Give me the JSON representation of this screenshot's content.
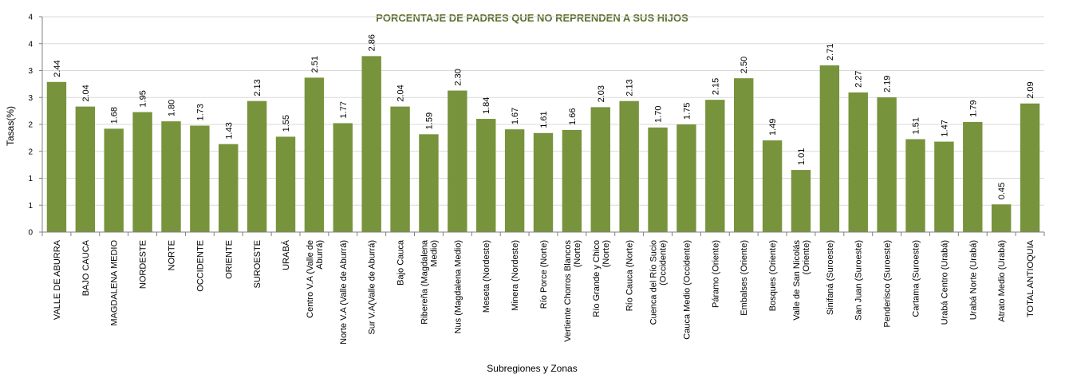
{
  "chart_data": {
    "type": "bar",
    "title": "PORCENTAJE DE PADRES QUE NO REPRENDEN A  SUS HIJOS",
    "xlabel": "Subregiones y Zonas",
    "ylabel": "Tasas(%)",
    "ytick_labels": [
      "0",
      "1",
      "1",
      "2",
      "2",
      "3",
      "3",
      "4",
      "4"
    ],
    "ylim": [
      0,
      3.5
    ],
    "grid": true,
    "bar_color": "#77933c",
    "title_color": "#5a6e2a",
    "categories": [
      "VALLE DE ABURRA",
      "BAJO CAUCA",
      "MAGDALENA MEDIO",
      "NORDESTE",
      "NORTE",
      "OCCIDENTE",
      "ORIENTE",
      "SUROESTE",
      "URABÁ",
      "Centro V.A (Valle de\nAburrá)",
      "Norte V.A (Valle de Aburrá)",
      "Sur V.A(Valle de Aburrá)",
      "Bajo Cauca",
      "Ribereña  (Magdalena\nMedio)",
      "Nus  (Magdalena Medio)",
      "Meseta  (Nordeste)",
      "Minera  (Nordeste)",
      "Río Porce  (Norte)",
      "Vertiente Chorros Blancos\n(Norte)",
      "Río Grande y Chico\n(Norte)",
      "Río Cauca  (Norte)",
      "Cuenca del Río Sucio\n(Occidente)",
      "Cauca Medio  (Occidente)",
      "Páramo  (Oriente)",
      "Embalses (Oriente)",
      "Bosques  (Oriente)",
      "Valle de San Nicolás\n(Oriente)",
      "Sinifaná (Suroeste)",
      "San Juan (Suroeste)",
      "Penderisco  (Suroeste)",
      "Cartama  (Suroeste)",
      "Urabá Centro  (Urabá)",
      "Urabá Norte  (Urabá)",
      "Atrato Medio  (Urabá)",
      "TOTAL ANTIOQUIA"
    ],
    "values": [
      2.44,
      2.04,
      1.68,
      1.95,
      1.8,
      1.73,
      1.43,
      2.13,
      1.55,
      2.51,
      1.77,
      2.86,
      2.04,
      1.59,
      2.3,
      1.84,
      1.67,
      1.61,
      1.66,
      2.03,
      2.13,
      1.7,
      1.75,
      2.15,
      2.5,
      1.49,
      1.01,
      2.71,
      2.27,
      2.19,
      1.51,
      1.47,
      1.79,
      0.45,
      2.09
    ],
    "data_labels": [
      "2.44",
      "2.04",
      "1.68",
      "1.95",
      "1.80",
      "1.73",
      "1.43",
      "2.13",
      "1.55",
      "2.51",
      "1.77",
      "2.86",
      "2.04",
      "1.59",
      "2.30",
      "1.84",
      "1.67",
      "1.61",
      "1.66",
      "2.03",
      "2.13",
      "1.70",
      "1.75",
      "2.15",
      "2.50",
      "1.49",
      "1.01",
      "2.71",
      "2.27",
      "2.19",
      "1.51",
      "1.47",
      "1.79",
      "0.45",
      "2.09"
    ]
  }
}
